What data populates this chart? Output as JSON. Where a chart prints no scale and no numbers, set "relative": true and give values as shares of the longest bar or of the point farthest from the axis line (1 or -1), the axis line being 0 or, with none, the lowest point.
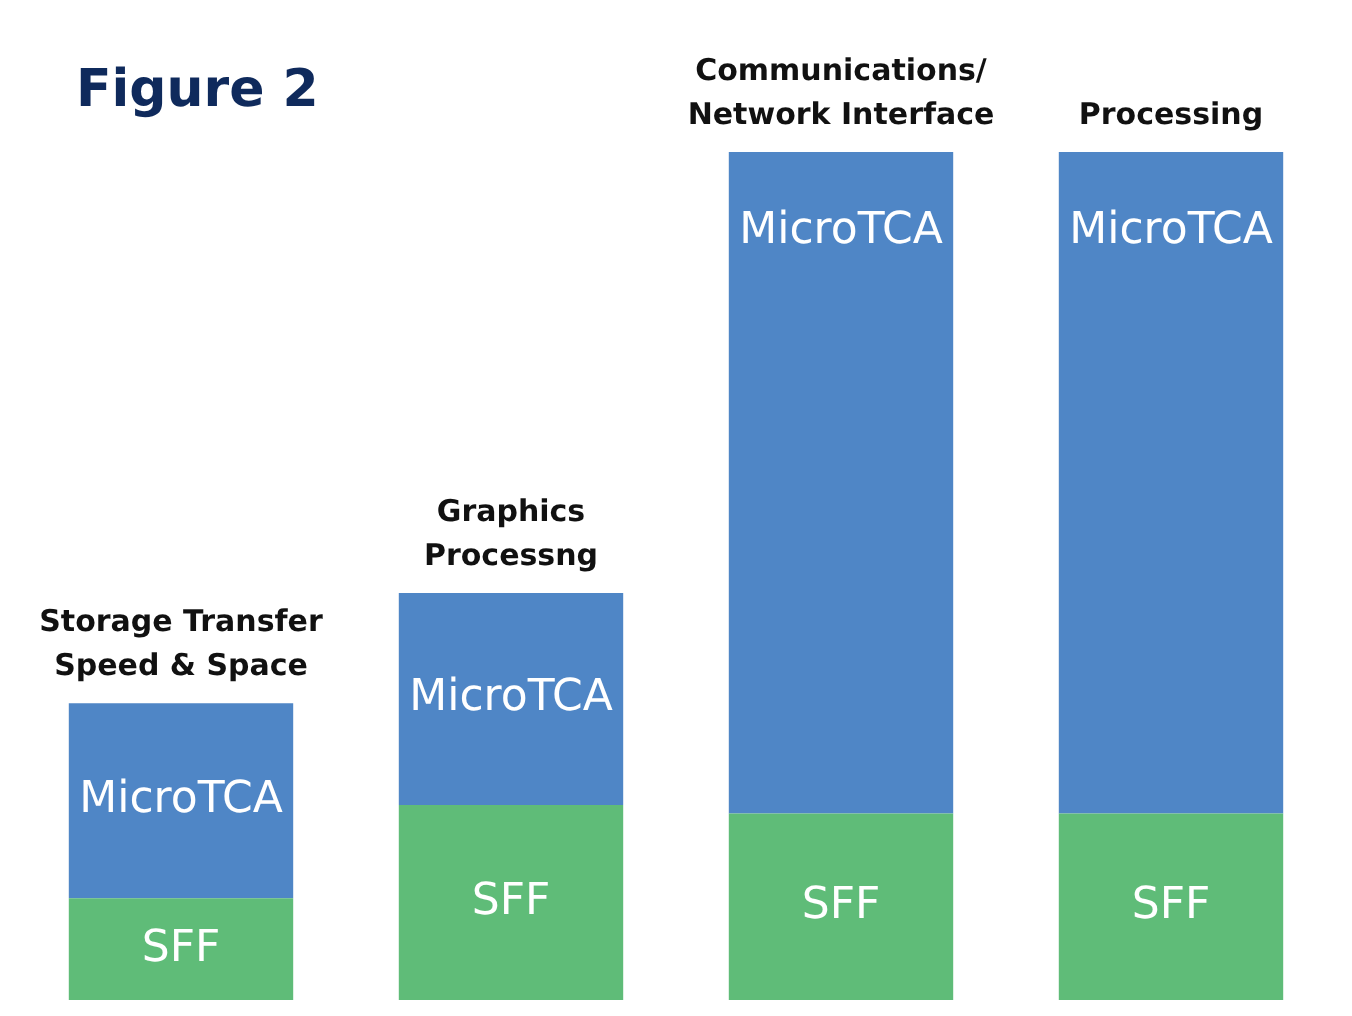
{
  "chart_data": {
    "type": "bar",
    "title": "Figure 2",
    "stacked": true,
    "relative": true,
    "legend": false,
    "categories": [
      "Storage Transfer Speed & Space",
      "Graphics Processng",
      "Communications/ Network Interface",
      "Processing"
    ],
    "series": [
      {
        "name": "SFF",
        "color": "#5fbc78",
        "values": [
          0.12,
          0.23,
          0.22,
          0.22
        ]
      },
      {
        "name": "MicroTCA",
        "color": "#4f86c6",
        "values": [
          0.23,
          0.25,
          0.78,
          0.78
        ]
      }
    ]
  }
}
